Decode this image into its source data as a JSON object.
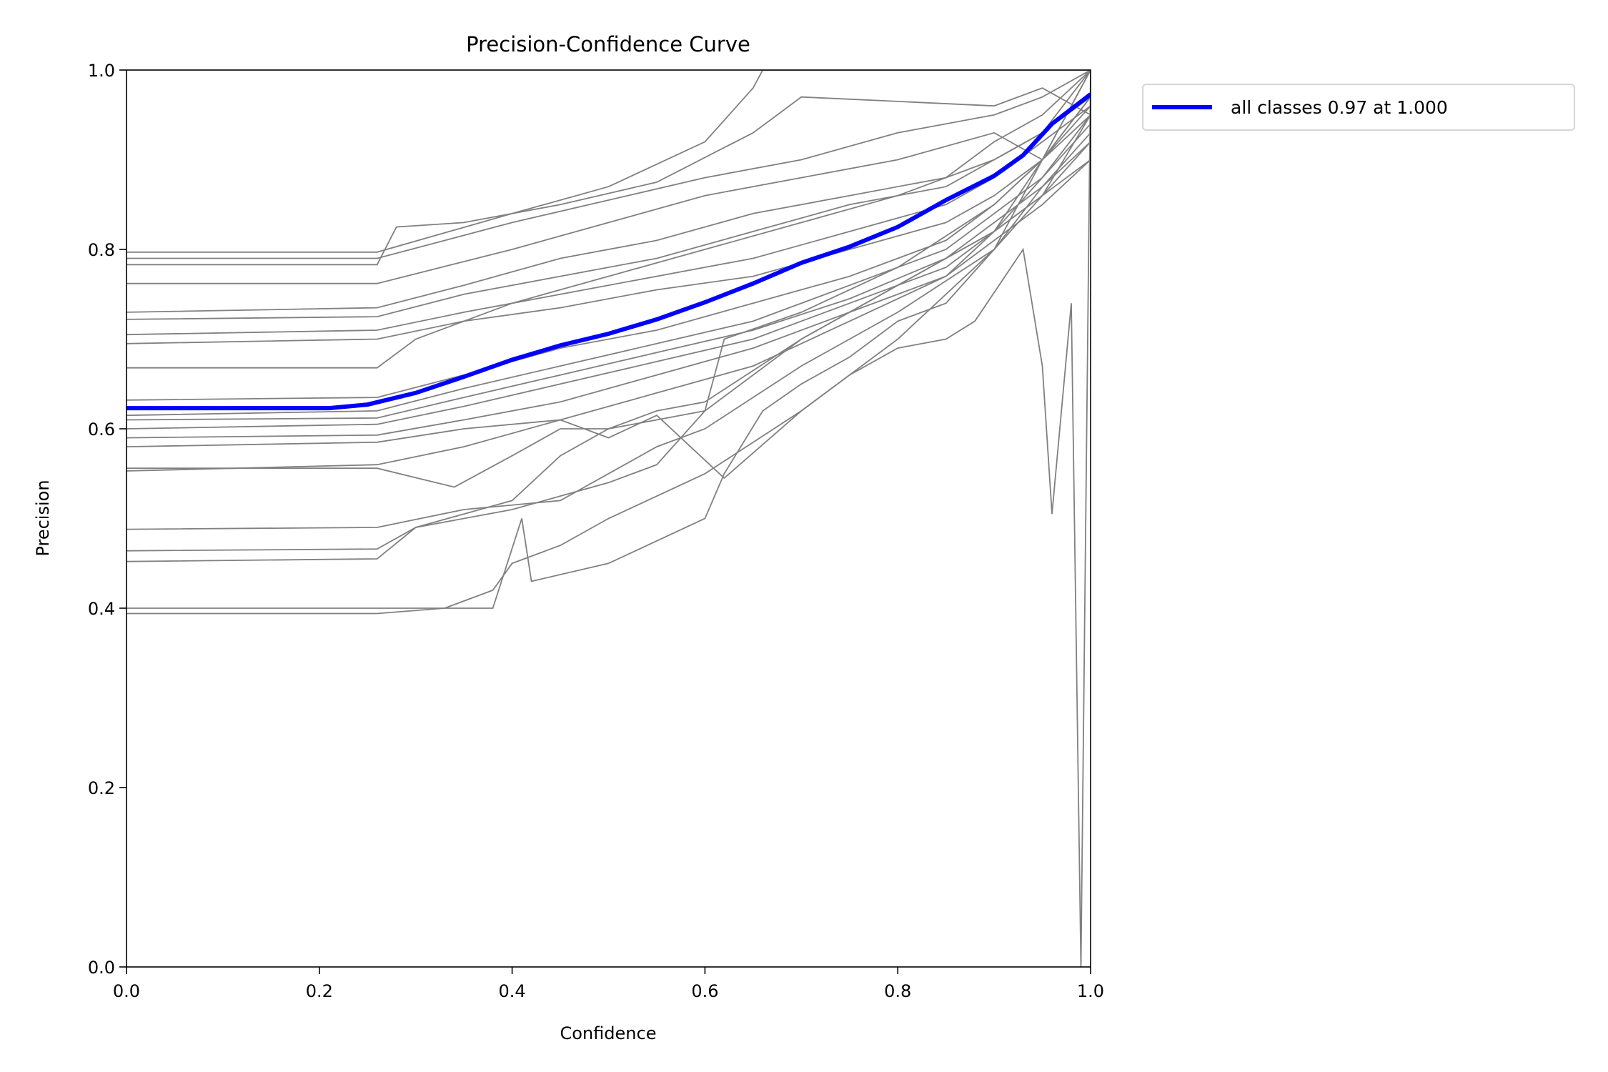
{
  "chart_data": {
    "type": "line",
    "title": "Precision-Confidence Curve",
    "xlabel": "Confidence",
    "ylabel": "Precision",
    "xlim": [
      0,
      1
    ],
    "ylim": [
      0,
      1
    ],
    "xticks": [
      "0.0",
      "0.2",
      "0.4",
      "0.6",
      "0.8",
      "1.0"
    ],
    "yticks": [
      "0.0",
      "0.2",
      "0.4",
      "0.6",
      "0.8",
      "1.0"
    ],
    "grid": false,
    "legend_placement": "outside-top-right",
    "colors": {
      "class_curves": "#808080",
      "all_classes": "#0000ff"
    },
    "highlight_series": {
      "name": "all classes 0.97 at 1.000",
      "x": [
        0,
        0.21,
        0.25,
        0.3,
        0.35,
        0.4,
        0.45,
        0.5,
        0.55,
        0.6,
        0.65,
        0.7,
        0.75,
        0.8,
        0.85,
        0.9,
        0.93,
        0.96,
        1.0
      ],
      "y": [
        0.623,
        0.623,
        0.627,
        0.64,
        0.658,
        0.677,
        0.693,
        0.706,
        0.722,
        0.741,
        0.762,
        0.785,
        0.803,
        0.825,
        0.855,
        0.882,
        0.905,
        0.94,
        0.973
      ]
    },
    "class_series": [
      {
        "x": [
          0,
          0.26,
          0.4,
          0.5,
          0.6,
          0.65,
          0.66,
          0.7,
          0.8,
          0.9,
          0.95,
          1.0
        ],
        "y": [
          0.797,
          0.797,
          0.84,
          0.87,
          0.92,
          0.98,
          1.0,
          1.0,
          1.0,
          1.0,
          1.0,
          1.0
        ]
      },
      {
        "x": [
          0,
          0.26,
          0.4,
          0.5,
          0.6,
          0.7,
          0.8,
          0.9,
          0.95,
          1.0
        ],
        "y": [
          0.79,
          0.79,
          0.83,
          0.855,
          0.88,
          0.9,
          0.93,
          0.95,
          0.97,
          1.0
        ]
      },
      {
        "x": [
          0,
          0.26,
          0.28,
          0.35,
          0.45,
          0.55,
          0.65,
          0.7,
          0.8,
          0.9,
          0.95,
          1.0
        ],
        "y": [
          0.783,
          0.783,
          0.825,
          0.83,
          0.85,
          0.875,
          0.93,
          0.97,
          0.965,
          0.96,
          0.98,
          0.95
        ]
      },
      {
        "x": [
          0,
          0.26,
          0.4,
          0.5,
          0.6,
          0.7,
          0.8,
          0.9,
          0.95,
          1.0
        ],
        "y": [
          0.762,
          0.762,
          0.8,
          0.83,
          0.86,
          0.88,
          0.9,
          0.93,
          0.9,
          0.97
        ]
      },
      {
        "x": [
          0,
          0.26,
          0.35,
          0.45,
          0.55,
          0.65,
          0.75,
          0.85,
          0.9,
          0.95,
          1.0
        ],
        "y": [
          0.73,
          0.735,
          0.76,
          0.79,
          0.81,
          0.84,
          0.86,
          0.88,
          0.92,
          0.95,
          1.0
        ]
      },
      {
        "x": [
          0,
          0.26,
          0.35,
          0.45,
          0.55,
          0.65,
          0.75,
          0.85,
          0.9,
          0.95,
          1.0
        ],
        "y": [
          0.722,
          0.725,
          0.75,
          0.77,
          0.79,
          0.82,
          0.85,
          0.87,
          0.9,
          0.93,
          0.97
        ]
      },
      {
        "x": [
          0,
          0.26,
          0.35,
          0.45,
          0.55,
          0.65,
          0.75,
          0.85,
          0.9,
          0.95,
          1.0
        ],
        "y": [
          0.705,
          0.71,
          0.73,
          0.75,
          0.77,
          0.79,
          0.82,
          0.85,
          0.88,
          0.92,
          0.96
        ]
      },
      {
        "x": [
          0,
          0.26,
          0.35,
          0.45,
          0.55,
          0.65,
          0.75,
          0.85,
          0.9,
          0.95,
          1.0
        ],
        "y": [
          0.695,
          0.7,
          0.72,
          0.735,
          0.755,
          0.77,
          0.8,
          0.83,
          0.86,
          0.9,
          0.95
        ]
      },
      {
        "x": [
          0,
          0.26,
          0.3,
          0.4,
          0.5,
          0.6,
          0.7,
          0.8,
          0.9,
          0.95,
          1.0
        ],
        "y": [
          0.668,
          0.668,
          0.7,
          0.74,
          0.77,
          0.8,
          0.83,
          0.86,
          0.9,
          0.93,
          1.0
        ]
      },
      {
        "x": [
          0,
          0.26,
          0.35,
          0.45,
          0.55,
          0.65,
          0.75,
          0.85,
          0.9,
          0.95,
          1.0
        ],
        "y": [
          0.632,
          0.635,
          0.66,
          0.69,
          0.71,
          0.74,
          0.77,
          0.81,
          0.85,
          0.9,
          0.96
        ]
      },
      {
        "x": [
          0,
          0.26,
          0.35,
          0.45,
          0.55,
          0.65,
          0.75,
          0.85,
          0.9,
          0.95,
          1.0
        ],
        "y": [
          0.615,
          0.62,
          0.645,
          0.67,
          0.695,
          0.72,
          0.76,
          0.8,
          0.84,
          0.88,
          0.94
        ]
      },
      {
        "x": [
          0,
          0.26,
          0.35,
          0.45,
          0.55,
          0.65,
          0.75,
          0.85,
          0.9,
          0.95,
          1.0
        ],
        "y": [
          0.61,
          0.612,
          0.635,
          0.66,
          0.685,
          0.71,
          0.745,
          0.79,
          0.83,
          0.87,
          0.92
        ]
      },
      {
        "x": [
          0,
          0.26,
          0.35,
          0.45,
          0.55,
          0.65,
          0.75,
          0.85,
          0.9,
          0.95,
          1.0
        ],
        "y": [
          0.6,
          0.605,
          0.625,
          0.65,
          0.675,
          0.7,
          0.74,
          0.78,
          0.82,
          0.86,
          0.9
        ]
      },
      {
        "x": [
          0,
          0.26,
          0.35,
          0.45,
          0.55,
          0.65,
          0.75,
          0.85,
          0.9,
          0.95,
          1.0
        ],
        "y": [
          0.59,
          0.593,
          0.61,
          0.63,
          0.66,
          0.69,
          0.73,
          0.77,
          0.81,
          0.85,
          0.9
        ]
      },
      {
        "x": [
          0,
          0.26,
          0.35,
          0.45,
          0.5,
          0.55,
          0.62,
          0.7,
          0.8,
          0.9,
          0.95,
          1.0
        ],
        "y": [
          0.58,
          0.585,
          0.6,
          0.61,
          0.59,
          0.615,
          0.545,
          0.62,
          0.7,
          0.8,
          0.87,
          0.93
        ]
      },
      {
        "x": [
          0,
          0.26,
          0.34,
          0.4,
          0.45,
          0.5,
          0.55,
          0.6,
          0.7,
          0.8,
          0.9,
          0.95,
          1.0
        ],
        "y": [
          0.556,
          0.556,
          0.535,
          0.57,
          0.6,
          0.6,
          0.62,
          0.63,
          0.7,
          0.76,
          0.82,
          0.86,
          0.92
        ]
      },
      {
        "x": [
          0,
          0.26,
          0.35,
          0.45,
          0.55,
          0.65,
          0.75,
          0.85,
          0.9,
          0.95,
          1.0
        ],
        "y": [
          0.553,
          0.56,
          0.58,
          0.61,
          0.64,
          0.67,
          0.72,
          0.77,
          0.82,
          0.9,
          1.0
        ]
      },
      {
        "x": [
          0,
          0.26,
          0.35,
          0.45,
          0.55,
          0.6,
          0.7,
          0.8,
          0.9,
          0.95,
          1.0
        ],
        "y": [
          0.488,
          0.49,
          0.51,
          0.52,
          0.58,
          0.6,
          0.67,
          0.73,
          0.8,
          0.86,
          0.95
        ]
      },
      {
        "x": [
          0,
          0.26,
          0.3,
          0.4,
          0.5,
          0.55,
          0.6,
          0.7,
          0.8,
          0.9,
          0.95,
          1.0
        ],
        "y": [
          0.464,
          0.466,
          0.49,
          0.51,
          0.54,
          0.56,
          0.62,
          0.7,
          0.76,
          0.82,
          0.88,
          0.95
        ]
      },
      {
        "x": [
          0,
          0.26,
          0.3,
          0.4,
          0.45,
          0.5,
          0.55,
          0.6,
          0.62,
          0.7,
          0.8,
          0.9,
          0.95,
          1.0
        ],
        "y": [
          0.452,
          0.455,
          0.49,
          0.52,
          0.57,
          0.6,
          0.61,
          0.62,
          0.7,
          0.73,
          0.78,
          0.85,
          0.9,
          0.97
        ]
      },
      {
        "x": [
          0,
          0.38,
          0.41,
          0.42,
          0.5,
          0.6,
          0.62,
          0.66,
          0.7,
          0.75,
          0.8,
          0.85,
          0.9,
          0.95,
          1.0
        ],
        "y": [
          0.4,
          0.4,
          0.5,
          0.43,
          0.45,
          0.5,
          0.55,
          0.62,
          0.65,
          0.68,
          0.72,
          0.74,
          0.8,
          0.9,
          1.0
        ]
      },
      {
        "x": [
          0,
          0.26,
          0.33,
          0.38,
          0.4,
          0.45,
          0.5,
          0.6,
          0.7,
          0.75,
          0.8,
          0.85,
          0.88,
          0.93,
          0.95,
          0.96,
          0.98,
          0.99,
          1.0
        ],
        "y": [
          0.394,
          0.394,
          0.4,
          0.42,
          0.45,
          0.47,
          0.5,
          0.55,
          0.62,
          0.66,
          0.69,
          0.7,
          0.72,
          0.8,
          0.67,
          0.505,
          0.74,
          0.0,
          1.0
        ]
      }
    ]
  }
}
